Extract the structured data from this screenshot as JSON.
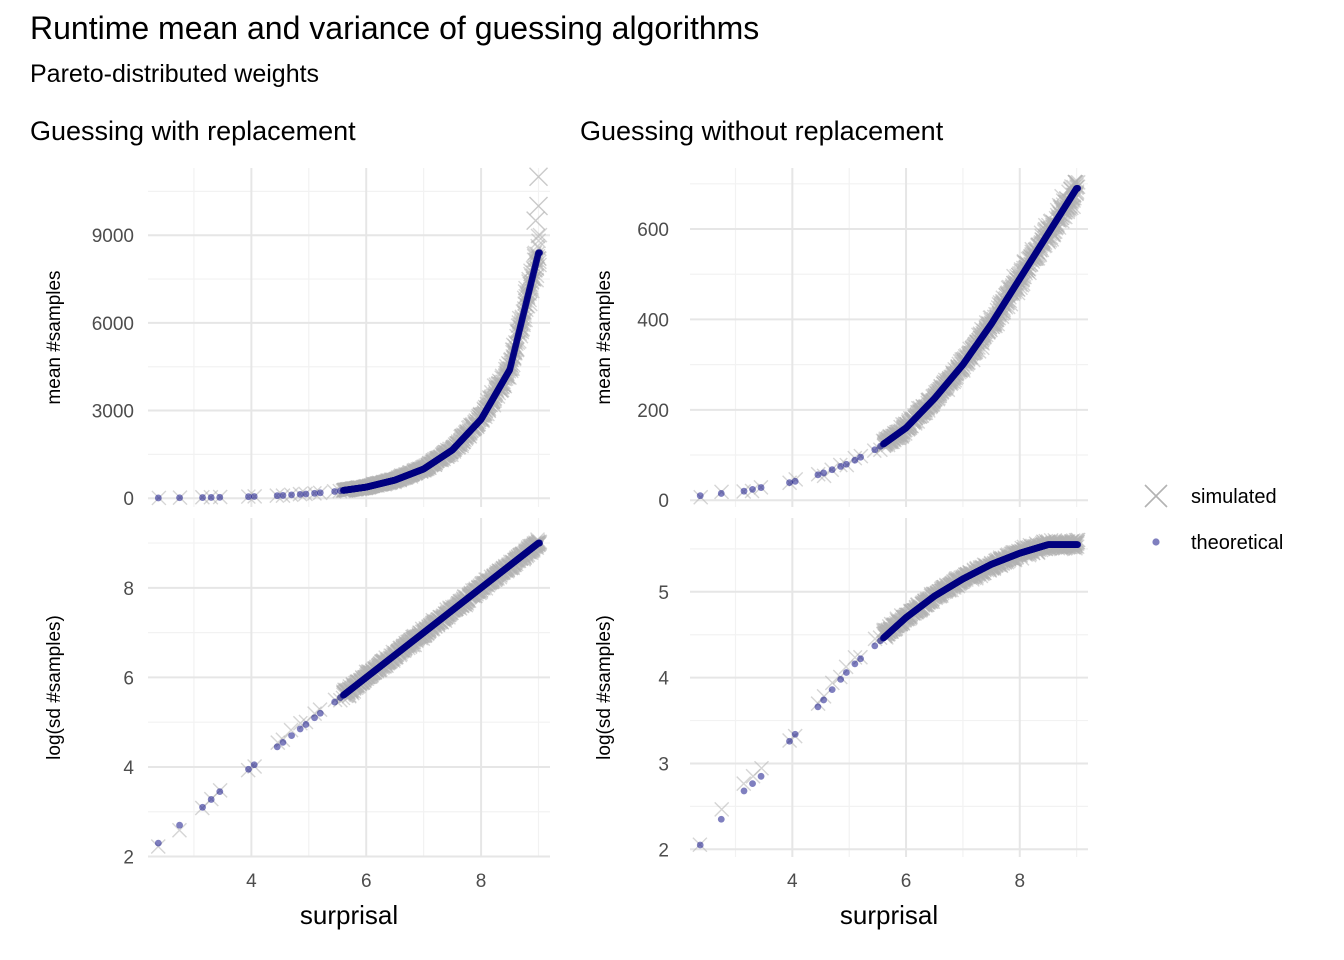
{
  "title": "Runtime mean and variance of guessing algorithms",
  "subtitle": "Pareto-distributed weights",
  "colors": {
    "simulated": "#b3b3b3",
    "theoretical": "#00007f",
    "grid_major": "#e6e6e6",
    "grid_minor": "#f2f2f2"
  },
  "legend": {
    "items": [
      {
        "label": "simulated",
        "shape": "x"
      },
      {
        "label": "theoretical",
        "shape": "dot"
      }
    ]
  },
  "chart_data": [
    {
      "type": "scatter",
      "panel": "top-left",
      "column_title": "Guessing with replacement",
      "xlabel": "surprisal",
      "ylabel": "mean #samples",
      "xlim": [
        2.2,
        9.2
      ],
      "ylim": [
        -300,
        11300
      ],
      "x_ticks": [
        4,
        6,
        8
      ],
      "y_ticks": [
        0,
        3000,
        6000,
        9000
      ],
      "y_tick_labels": [
        "0",
        "3000",
        "6000",
        "9000"
      ],
      "series": [
        {
          "name": "simulated",
          "x": [
            2.38,
            2.75,
            3.15,
            3.45,
            4.0,
            4.5,
            5.0,
            5.5,
            6.0,
            6.5,
            7.0,
            7.5,
            8.0,
            8.5,
            9.0
          ],
          "y": [
            10,
            20,
            30,
            40,
            60,
            90,
            150,
            240,
            380,
            620,
            1000,
            1650,
            2700,
            4400,
            8400
          ]
        },
        {
          "name": "theoretical",
          "x": [
            2.38,
            2.75,
            3.15,
            3.45,
            4.0,
            4.5,
            5.0,
            5.5,
            6.0,
            6.5,
            7.0,
            7.5,
            8.0,
            8.5,
            9.0
          ],
          "y": [
            10,
            16,
            23,
            31,
            55,
            90,
            150,
            240,
            380,
            620,
            1000,
            1650,
            2700,
            4400,
            8400
          ]
        }
      ]
    },
    {
      "type": "scatter",
      "panel": "top-right",
      "column_title": "Guessing without replacement",
      "xlabel": "surprisal",
      "ylabel": "mean #samples",
      "xlim": [
        2.2,
        9.2
      ],
      "ylim": [
        -15,
        735
      ],
      "x_ticks": [
        4,
        6,
        8
      ],
      "y_ticks": [
        0,
        200,
        400,
        600
      ],
      "y_tick_labels": [
        "0",
        "200",
        "400",
        "600"
      ],
      "series": [
        {
          "name": "simulated",
          "x": [
            2.38,
            2.75,
            3.15,
            3.45,
            4.0,
            4.5,
            5.0,
            5.5,
            6.0,
            6.5,
            7.0,
            7.5,
            8.0,
            8.5,
            9.0
          ],
          "y": [
            10,
            15,
            20,
            28,
            40,
            58,
            82,
            115,
            160,
            225,
            300,
            390,
            490,
            590,
            690
          ]
        },
        {
          "name": "theoretical",
          "x": [
            2.38,
            2.75,
            3.15,
            3.45,
            4.0,
            4.5,
            5.0,
            5.5,
            6.0,
            6.5,
            7.0,
            7.5,
            8.0,
            8.5,
            9.0
          ],
          "y": [
            10,
            15,
            20,
            28,
            40,
            58,
            82,
            115,
            160,
            225,
            300,
            390,
            490,
            590,
            690
          ]
        }
      ]
    },
    {
      "type": "scatter",
      "panel": "bottom-left",
      "column_title": "Guessing with replacement",
      "xlabel": "surprisal",
      "ylabel": "log(sd #samples)",
      "xlim": [
        2.2,
        9.2
      ],
      "ylim": [
        1.99,
        9.56
      ],
      "x_ticks": [
        4,
        6,
        8
      ],
      "y_ticks": [
        2,
        4,
        6,
        8
      ],
      "y_tick_labels": [
        "2",
        "4",
        "6",
        "8"
      ],
      "series": [
        {
          "name": "simulated",
          "x": [
            2.38,
            2.75,
            3.15,
            3.45,
            4.0,
            4.5,
            5.0,
            5.5,
            6.0,
            6.5,
            7.0,
            7.5,
            8.0,
            8.5,
            9.0
          ],
          "y": [
            2.2,
            2.6,
            3.1,
            3.5,
            4.0,
            4.6,
            5.1,
            5.5,
            6.0,
            6.5,
            7.0,
            7.5,
            8.0,
            8.5,
            9.0
          ]
        },
        {
          "name": "theoretical",
          "x": [
            2.38,
            2.75,
            3.15,
            3.45,
            4.0,
            4.5,
            5.0,
            5.5,
            6.0,
            6.5,
            7.0,
            7.5,
            8.0,
            8.5,
            9.0
          ],
          "y": [
            2.3,
            2.7,
            3.1,
            3.45,
            4.0,
            4.5,
            5.0,
            5.5,
            6.0,
            6.5,
            7.0,
            7.5,
            8.0,
            8.5,
            9.0
          ]
        }
      ]
    },
    {
      "type": "scatter",
      "panel": "bottom-right",
      "column_title": "Guessing without replacement",
      "xlabel": "surprisal",
      "ylabel": "log(sd #samples)",
      "xlim": [
        2.2,
        9.2
      ],
      "ylim": [
        1.91,
        5.86
      ],
      "x_ticks": [
        4,
        6,
        8
      ],
      "y_ticks": [
        2,
        3,
        4,
        5
      ],
      "y_tick_labels": [
        "2",
        "3",
        "4",
        "5"
      ],
      "series": [
        {
          "name": "simulated",
          "x": [
            2.38,
            2.75,
            3.15,
            3.45,
            4.0,
            4.5,
            5.0,
            5.5,
            6.0,
            6.5,
            7.0,
            7.5,
            8.0,
            8.5,
            9.0
          ],
          "y": [
            2.05,
            2.45,
            2.75,
            2.95,
            3.3,
            3.75,
            4.15,
            4.45,
            4.7,
            4.95,
            5.15,
            5.3,
            5.45,
            5.55,
            5.55
          ]
        },
        {
          "name": "theoretical",
          "x": [
            2.38,
            2.75,
            3.15,
            3.45,
            4.0,
            4.5,
            5.0,
            5.5,
            6.0,
            6.5,
            7.0,
            7.5,
            8.0,
            8.5,
            9.0
          ],
          "y": [
            2.05,
            2.35,
            2.68,
            2.85,
            3.3,
            3.7,
            4.1,
            4.4,
            4.7,
            4.95,
            5.15,
            5.32,
            5.45,
            5.55,
            5.55
          ]
        }
      ]
    }
  ]
}
